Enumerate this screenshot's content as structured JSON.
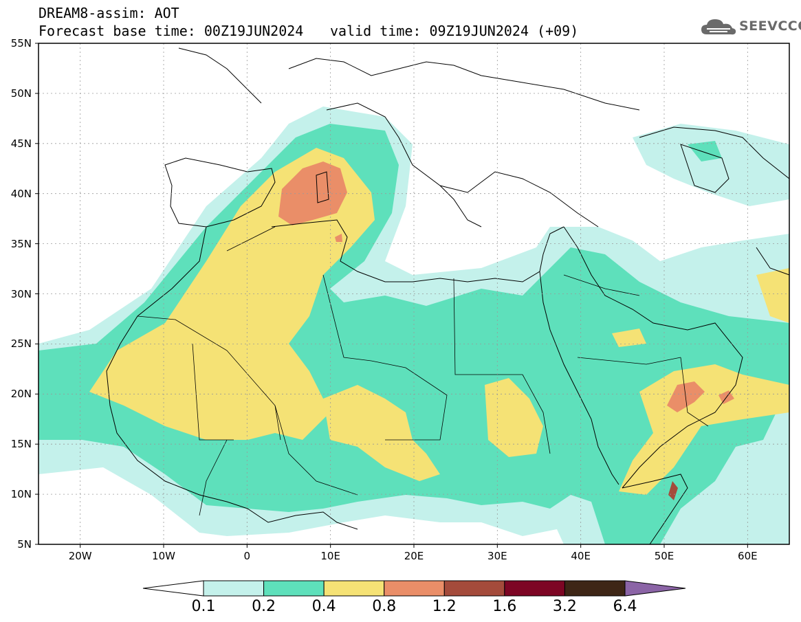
{
  "header": {
    "title_line1": "DREAM8-assim: AOT",
    "title_line2": "Forecast base time: 00Z19JUN2024",
    "valid_time": "valid time: 09Z19JUN2024 (+09)"
  },
  "logo": {
    "text": "SEEVCCC",
    "icon": "cloud-icon"
  },
  "map": {
    "lat_labels": [
      "55N",
      "50N",
      "45N",
      "40N",
      "35N",
      "30N",
      "25N",
      "20N",
      "15N",
      "10N",
      "5N"
    ],
    "lon_labels": [
      "20W",
      "10W",
      "0",
      "10E",
      "20E",
      "30E",
      "40E",
      "50E",
      "60E"
    ],
    "extent": {
      "lon_min": -25,
      "lon_max": 65,
      "lat_min": 5,
      "lat_max": 55
    }
  },
  "colorbar": {
    "labels": [
      "0.1",
      "0.2",
      "0.4",
      "0.8",
      "1.2",
      "1.6",
      "3.2",
      "6.4"
    ],
    "colors": [
      "#ffffff",
      "#c4f1eb",
      "#5ee0bb",
      "#f5e275",
      "#ea8e68",
      "#a44b3b",
      "#7d0624",
      "#3e2616",
      "#8b64a6"
    ]
  },
  "colors": {
    "c1": "#c4f1eb",
    "c2": "#5ee0bb",
    "c3": "#f5e275",
    "c4": "#ea8e68",
    "c5": "#a44b3b",
    "c6": "#7d0624"
  }
}
